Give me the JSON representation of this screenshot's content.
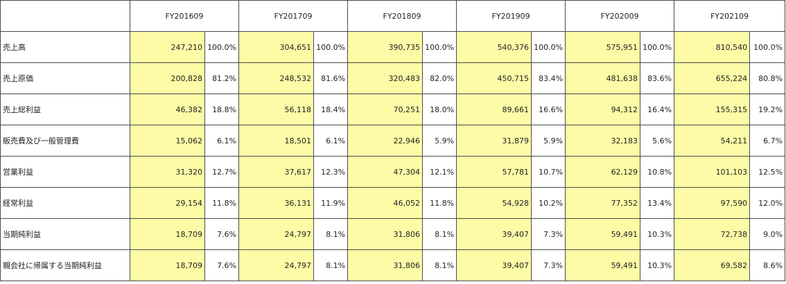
{
  "table": {
    "columns": [
      "FY201609",
      "FY201709",
      "FY201809",
      "FY201909",
      "FY202009",
      "FY202109"
    ],
    "rows": [
      {
        "label": "売上高",
        "cells": [
          [
            "247,210",
            "100.0%"
          ],
          [
            "304,651",
            "100.0%"
          ],
          [
            "390,735",
            "100.0%"
          ],
          [
            "540,376",
            "100.0%"
          ],
          [
            "575,951",
            "100.0%"
          ],
          [
            "810,540",
            "100.0%"
          ]
        ]
      },
      {
        "label": "売上原価",
        "cells": [
          [
            "200,828",
            "81.2%"
          ],
          [
            "248,532",
            "81.6%"
          ],
          [
            "320,483",
            "82.0%"
          ],
          [
            "450,715",
            "83.4%"
          ],
          [
            "481,638",
            "83.6%"
          ],
          [
            "655,224",
            "80.8%"
          ]
        ]
      },
      {
        "label": "売上総利益",
        "cells": [
          [
            "46,382",
            "18.8%"
          ],
          [
            "56,118",
            "18.4%"
          ],
          [
            "70,251",
            "18.0%"
          ],
          [
            "89,661",
            "16.6%"
          ],
          [
            "94,312",
            "16.4%"
          ],
          [
            "155,315",
            "19.2%"
          ]
        ]
      },
      {
        "label": "販売費及び一般管理費",
        "cells": [
          [
            "15,062",
            "6.1%"
          ],
          [
            "18,501",
            "6.1%"
          ],
          [
            "22,946",
            "5.9%"
          ],
          [
            "31,879",
            "5.9%"
          ],
          [
            "32,183",
            "5.6%"
          ],
          [
            "54,211",
            "6.7%"
          ]
        ]
      },
      {
        "label": "営業利益",
        "cells": [
          [
            "31,320",
            "12.7%"
          ],
          [
            "37,617",
            "12.3%"
          ],
          [
            "47,304",
            "12.1%"
          ],
          [
            "57,781",
            "10.7%"
          ],
          [
            "62,129",
            "10.8%"
          ],
          [
            "101,103",
            "12.5%"
          ]
        ]
      },
      {
        "label": "経常利益",
        "cells": [
          [
            "29,154",
            "11.8%"
          ],
          [
            "36,131",
            "11.9%"
          ],
          [
            "46,052",
            "11.8%"
          ],
          [
            "54,928",
            "10.2%"
          ],
          [
            "77,352",
            "13.4%"
          ],
          [
            "97,590",
            "12.0%"
          ]
        ]
      },
      {
        "label": "当期純利益",
        "cells": [
          [
            "18,709",
            "7.6%"
          ],
          [
            "24,797",
            "8.1%"
          ],
          [
            "31,806",
            "8.1%"
          ],
          [
            "39,407",
            "7.3%"
          ],
          [
            "59,491",
            "10.3%"
          ],
          [
            "72,738",
            "9.0%"
          ]
        ]
      },
      {
        "label": "親会社に帰属する当期純利益",
        "cells": [
          [
            "18,709",
            "7.6%"
          ],
          [
            "24,797",
            "8.1%"
          ],
          [
            "31,806",
            "8.1%"
          ],
          [
            "39,407",
            "7.3%"
          ],
          [
            "59,491",
            "10.3%"
          ],
          [
            "69,582",
            "8.6%"
          ]
        ]
      }
    ]
  },
  "colors": {
    "amount_cell_fill": "#fdfba6",
    "grid_line": "#4a4a4a",
    "background": "#ffffff"
  }
}
